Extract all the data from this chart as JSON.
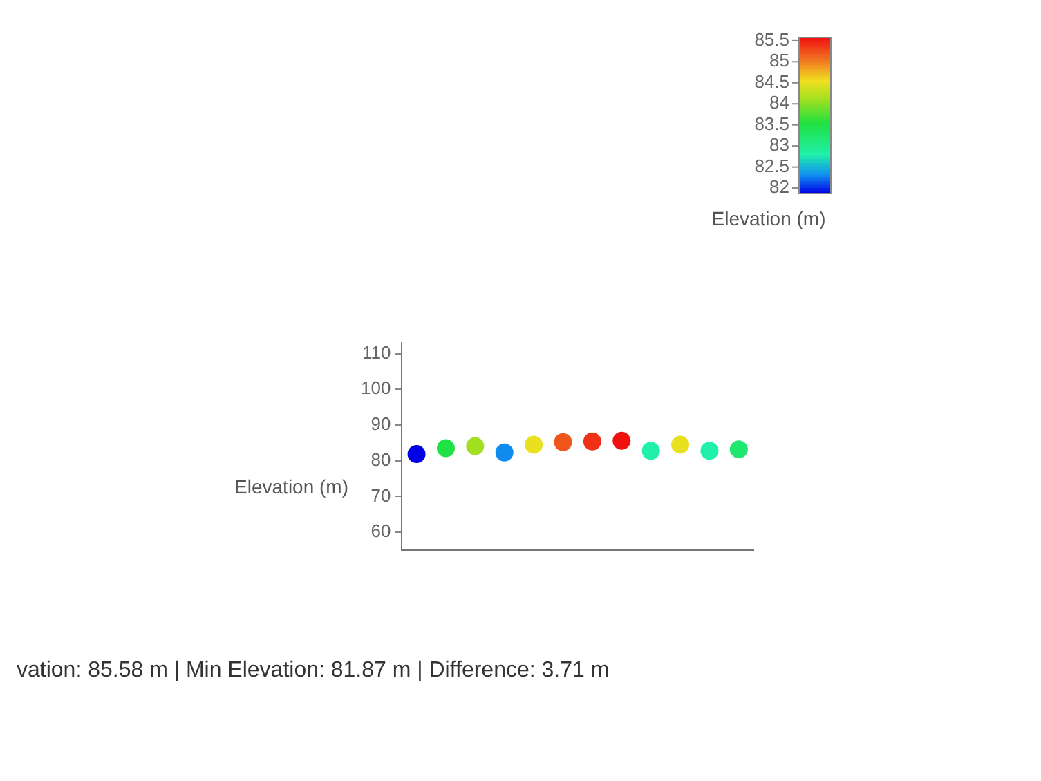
{
  "chart_data": {
    "type": "scatter",
    "categories": [
      null,
      null,
      null,
      null,
      null,
      null,
      null,
      null,
      null,
      null,
      null,
      null
    ],
    "values": [
      81.87,
      83.5,
      84.1,
      82.3,
      84.5,
      85.2,
      85.4,
      85.58,
      82.8,
      84.5,
      82.8,
      83.2
    ],
    "cvalues": [
      81.87,
      83.5,
      84.1,
      82.3,
      84.5,
      85.2,
      85.4,
      85.58,
      82.8,
      84.5,
      82.8,
      83.2
    ],
    "ylabel": "Elevation (m)",
    "ylim": [
      55,
      113
    ],
    "yticks": [
      60,
      70,
      80,
      90,
      100,
      110
    ],
    "clabel": "Elevation (m)",
    "clim": [
      81.87,
      85.58
    ],
    "cticks": [
      82,
      82.5,
      83,
      83.5,
      84,
      84.5,
      85,
      85.5
    ],
    "tick_labels": "y",
    "marker": "circle",
    "annotations": [
      "vation: 85.58 m | Min Elevation: 81.87 m | Difference: 3.71 m"
    ]
  }
}
